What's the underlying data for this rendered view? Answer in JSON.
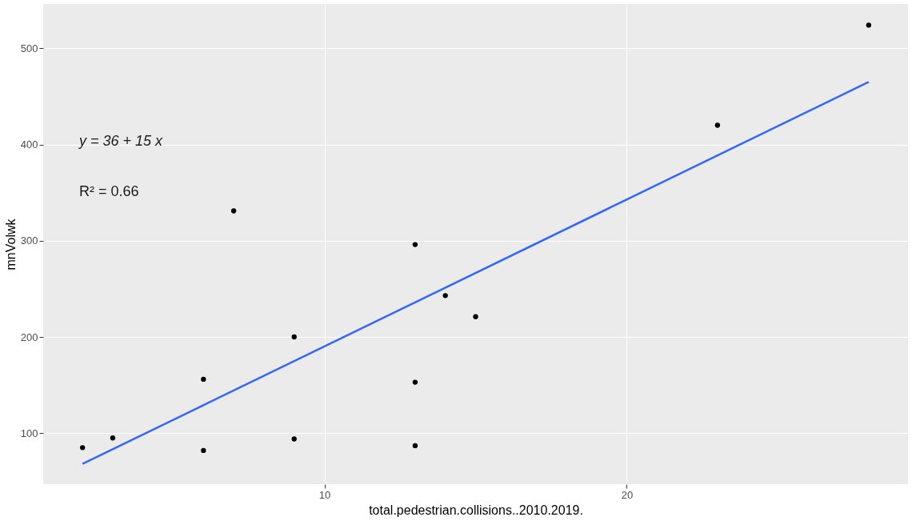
{
  "chart_data": {
    "type": "scatter",
    "xlabel": "total.pedestrian.collisions..2010.2019.",
    "ylabel": "mnVolwk",
    "annotations": [
      "y = 36 + 15 x",
      "R² = 0.66"
    ],
    "xlim": [
      0.7,
      29.3
    ],
    "ylim": [
      47,
      546
    ],
    "xticks": [
      10,
      20
    ],
    "yticks": [
      100,
      200,
      300,
      400,
      500
    ],
    "grid": true,
    "marker": "circle",
    "series": [
      {
        "color": "#000000",
        "x": [
          2,
          3,
          6,
          6,
          7,
          9,
          9,
          13,
          13,
          13,
          14,
          15,
          23,
          28
        ],
        "values": [
          85,
          95,
          156,
          82,
          331,
          200,
          94,
          296,
          153,
          87,
          243,
          221,
          420,
          524
        ]
      },
      {
        "type": "line",
        "color": "#3366ff",
        "line_style": "solid",
        "marker": "none",
        "x": [
          2,
          28
        ],
        "values": [
          68,
          465
        ]
      }
    ]
  }
}
